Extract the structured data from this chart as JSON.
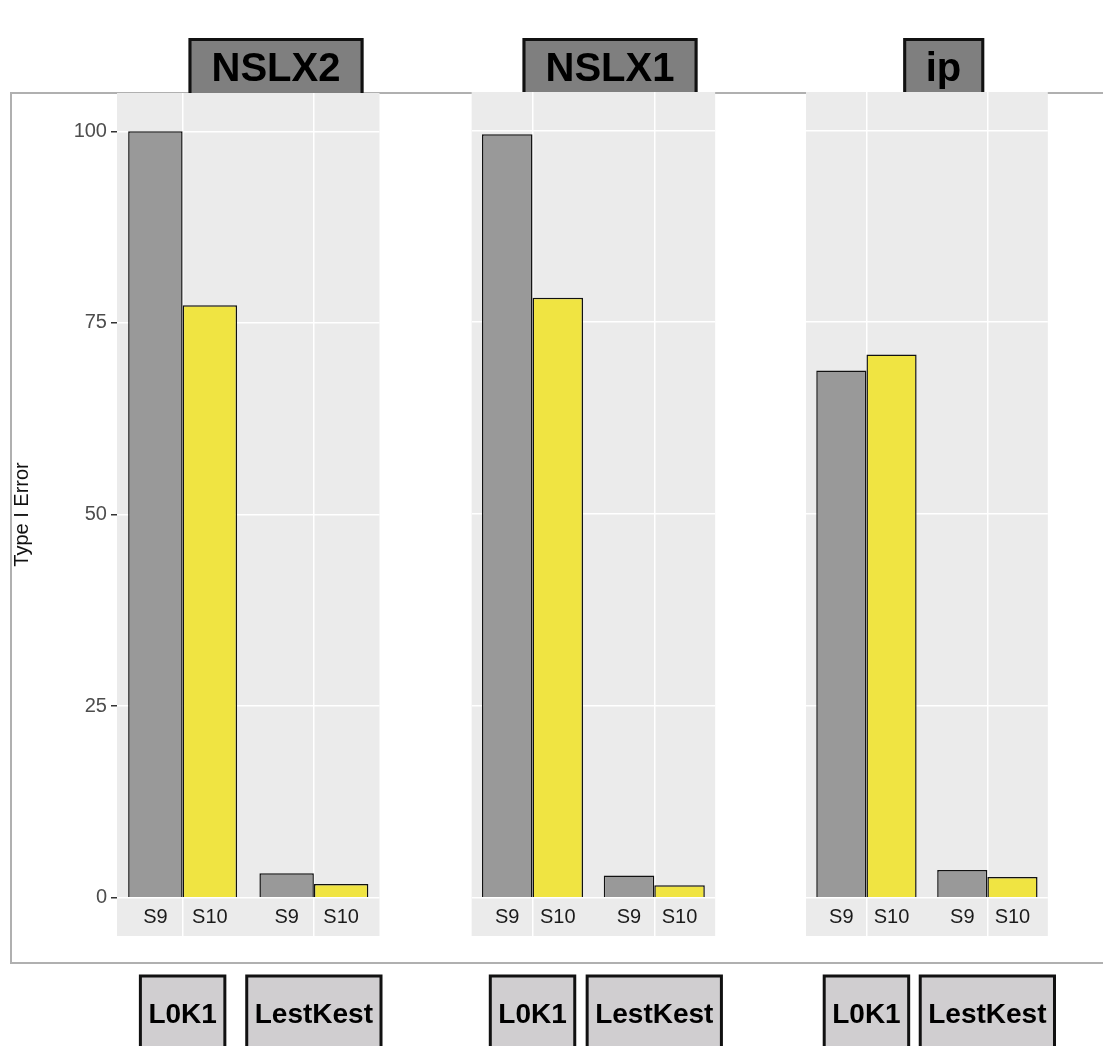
{
  "chart_data": [
    {
      "type": "bar",
      "title": "NSLX2",
      "ylabel": "Type I Error",
      "categories": [
        "L0K1",
        "LestKest"
      ],
      "series": [
        {
          "name": "S9",
          "color": "#999999",
          "values": [
            100,
            3.2
          ]
        },
        {
          "name": "S10",
          "color": "#f0e442",
          "values": [
            77.3,
            1.8
          ]
        }
      ],
      "ylim": [
        -5,
        105
      ],
      "yticks": [
        0,
        25,
        50,
        75,
        100
      ],
      "grid": true,
      "legend": false
    },
    {
      "type": "bar",
      "title": "NSLX1",
      "categories": [
        "L0K1",
        "LestKest"
      ],
      "series": [
        {
          "name": "S9",
          "color": "#999999",
          "values": [
            99.5,
            2.9
          ]
        },
        {
          "name": "S10",
          "color": "#f0e442",
          "values": [
            78.2,
            1.6
          ]
        }
      ],
      "ylim": [
        -5,
        105
      ],
      "yticks": [
        0,
        25,
        50,
        75,
        100
      ],
      "grid": true,
      "legend": false,
      "tick_labels": "x"
    },
    {
      "type": "bar",
      "title": "ip",
      "categories": [
        "L0K1",
        "LestKest"
      ],
      "series": [
        {
          "name": "S9",
          "color": "#999999",
          "values": [
            68.7,
            3.6
          ]
        },
        {
          "name": "S10",
          "color": "#f0e442",
          "values": [
            70.8,
            2.7
          ]
        }
      ],
      "ylim": [
        -5,
        105
      ],
      "yticks": [
        0,
        25,
        50,
        75,
        100
      ],
      "grid": true,
      "legend": false,
      "tick_labels": "x"
    }
  ]
}
